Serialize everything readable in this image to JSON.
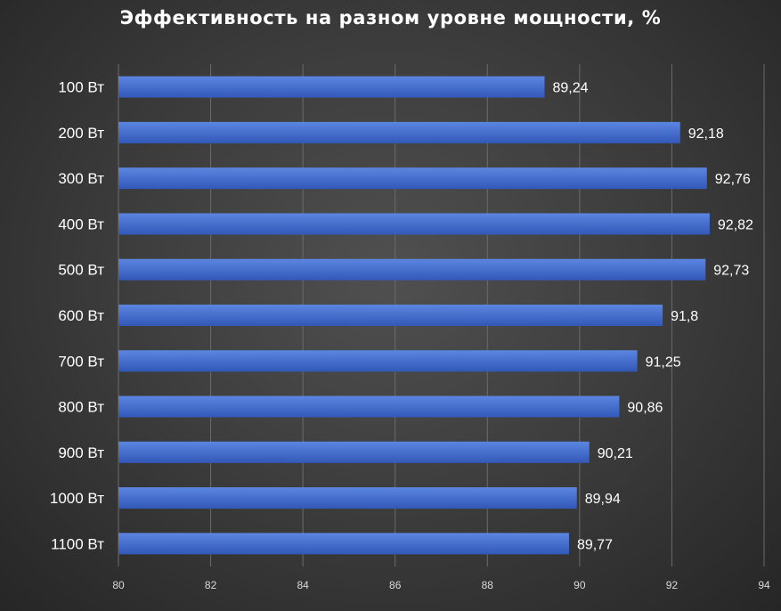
{
  "chart_data": {
    "type": "bar",
    "orientation": "horizontal",
    "title": "Эффективность на разном уровне мощности, %",
    "categories": [
      "100 Вт",
      "200 Вт",
      "300 Вт",
      "400 Вт",
      "500 Вт",
      "600 Вт",
      "700 Вт",
      "800 Вт",
      "900 Вт",
      "1000 Вт",
      "1100 Вт"
    ],
    "values": [
      89.24,
      92.18,
      92.76,
      92.82,
      92.73,
      91.8,
      91.25,
      90.86,
      90.21,
      89.94,
      89.77
    ],
    "data_labels": [
      "89,24",
      "92,18",
      "92,76",
      "92,82",
      "92,73",
      "91,8",
      "91,25",
      "90,86",
      "90,21",
      "89,94",
      "89,77"
    ],
    "x_ticks": [
      "80",
      "82",
      "84",
      "86",
      "88",
      "90",
      "92",
      "94"
    ],
    "xlim": [
      80,
      94
    ],
    "grid": true,
    "legend": "none",
    "colors": {
      "bar_top": "#5b86e0",
      "bar_bottom": "#3258b8",
      "grid": "#6b6b6b",
      "text": "#ffffff"
    }
  }
}
